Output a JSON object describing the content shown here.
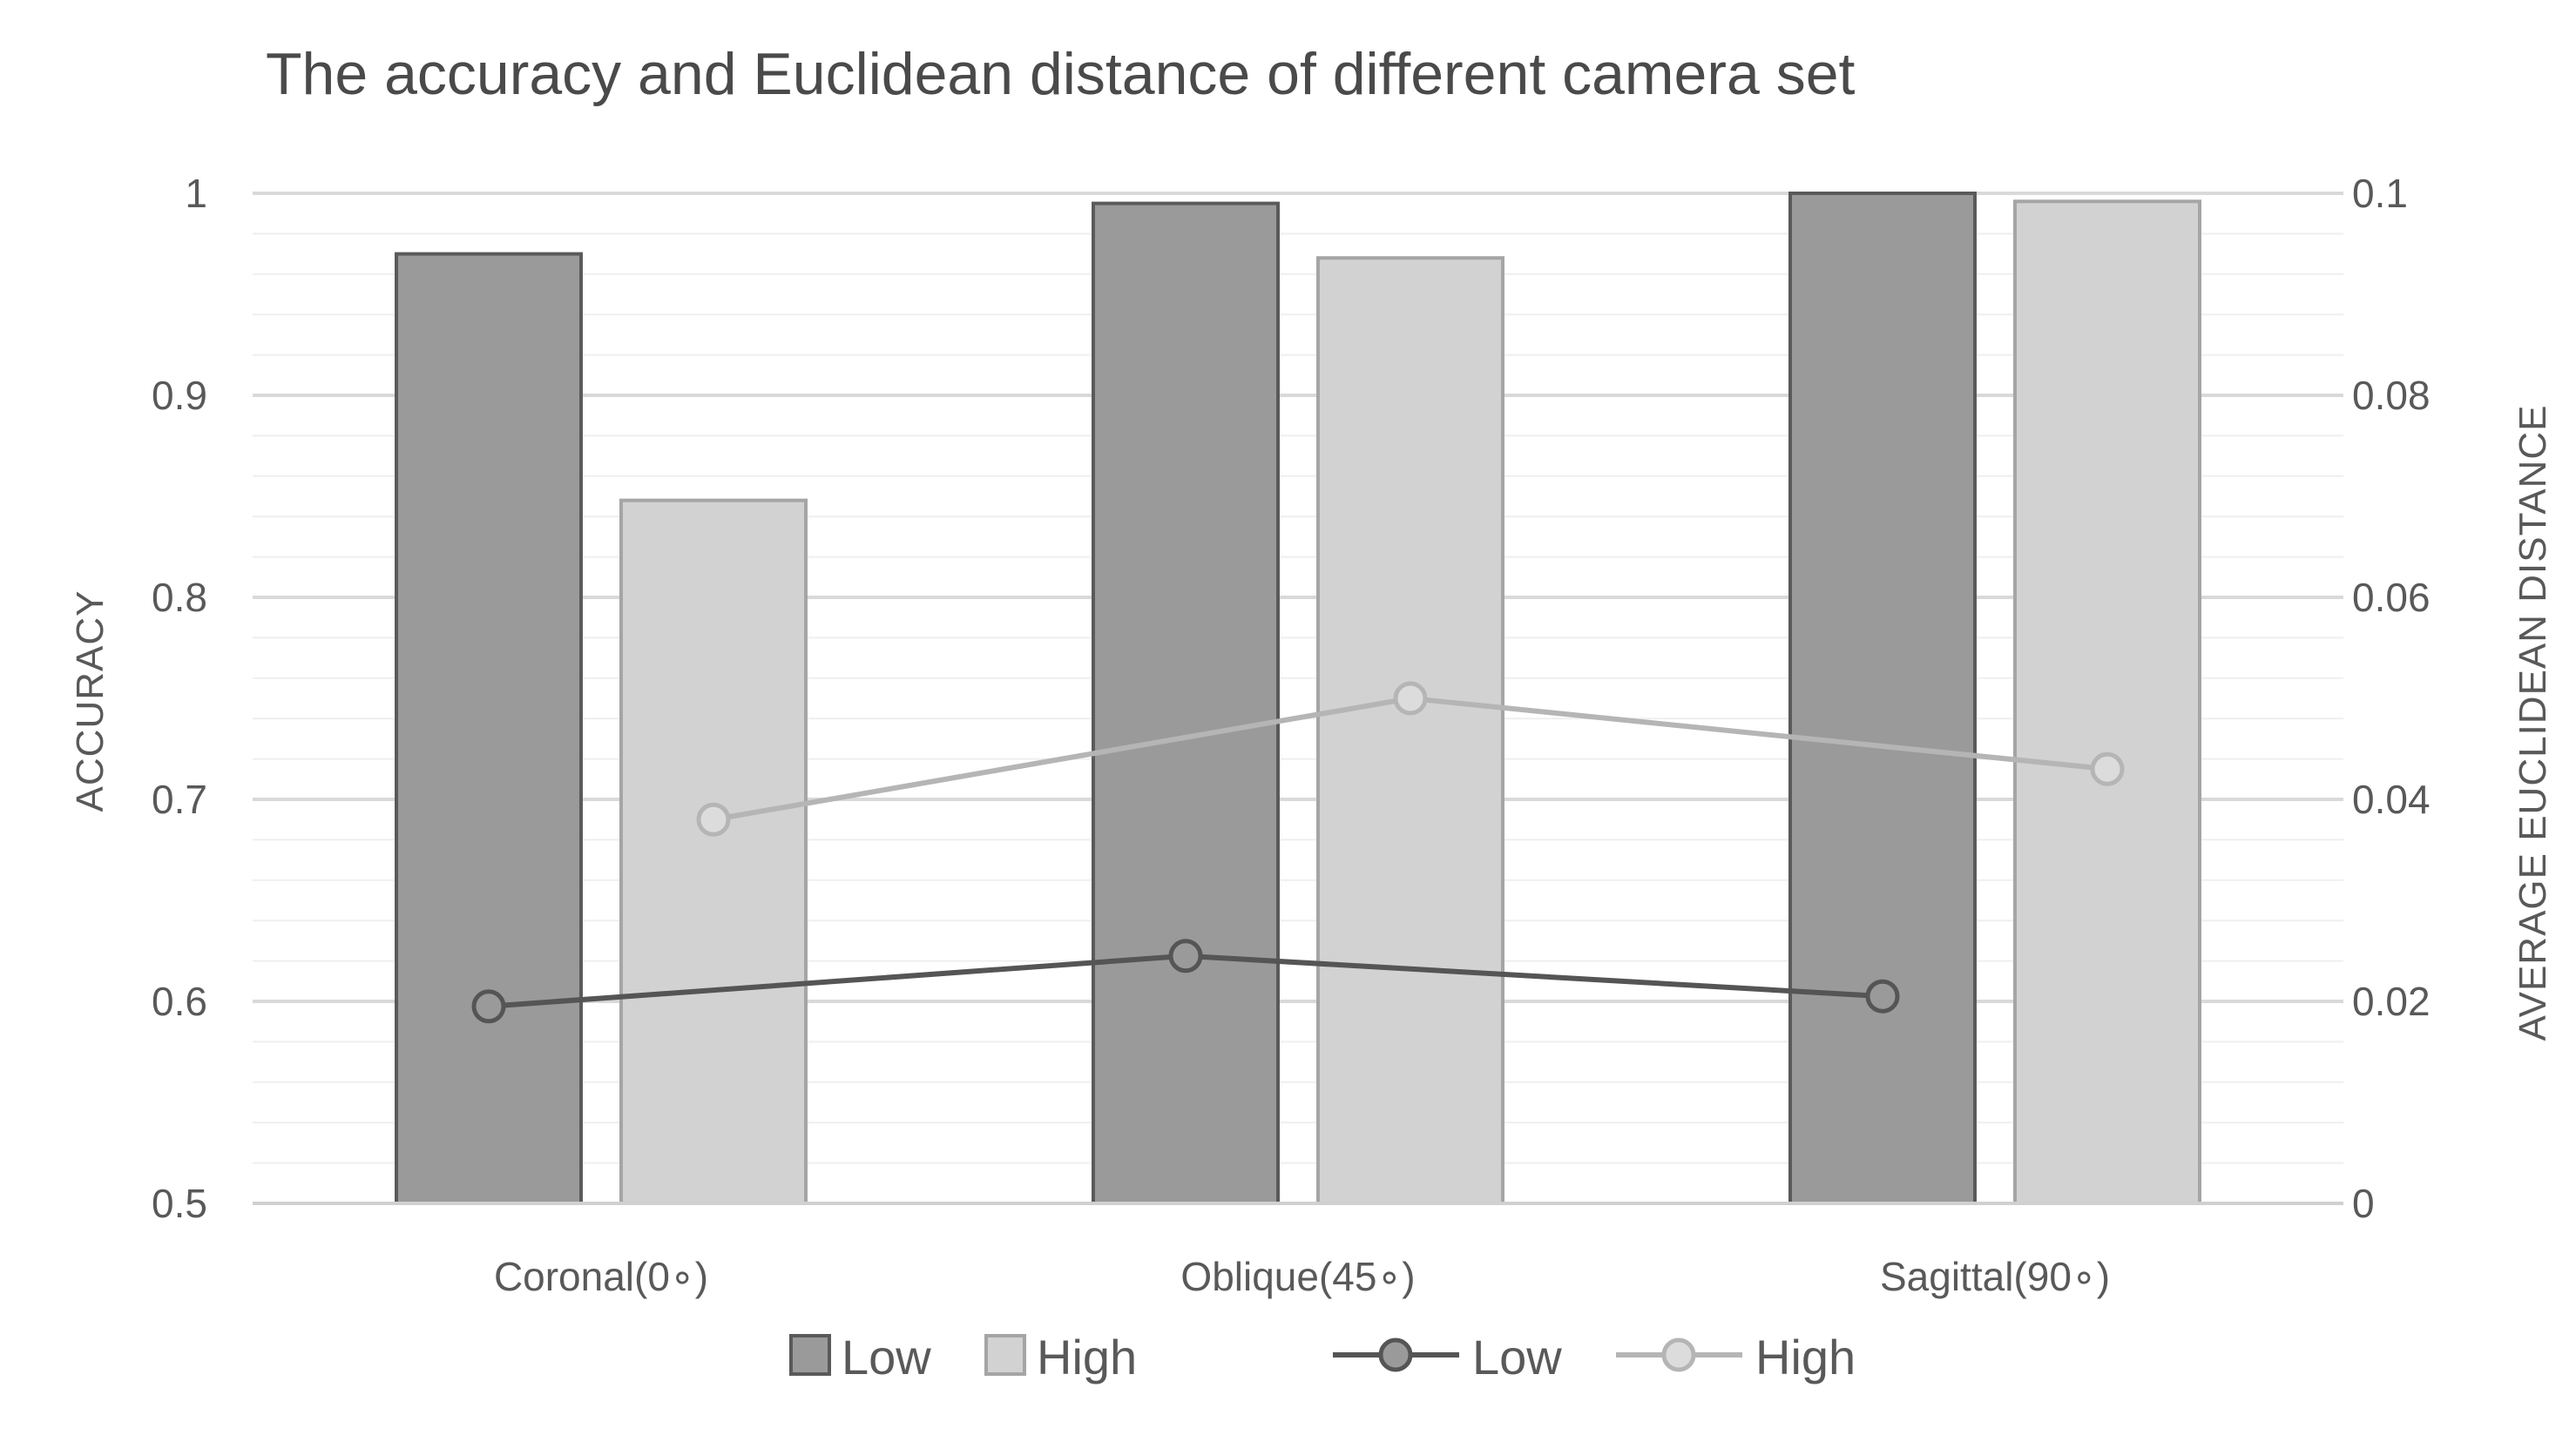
{
  "chart_data": {
    "type": "bar",
    "title": "The accuracy and Euclidean distance of different camera set",
    "categories": [
      "Coronal(0∘)",
      "Oblique(45∘)",
      "Sagittal(90∘)"
    ],
    "series": [
      {
        "name": "Low",
        "kind": "bar",
        "axis": "left",
        "color": "#9a9a9a",
        "values": [
          0.97,
          0.995,
          1.0
        ]
      },
      {
        "name": "High",
        "kind": "bar",
        "axis": "left",
        "color": "#d2d2d2",
        "values": [
          0.848,
          0.968,
          0.996
        ]
      },
      {
        "name": "Low",
        "kind": "line",
        "axis": "right",
        "color": "#555555",
        "values": [
          0.0195,
          0.0245,
          0.0205
        ]
      },
      {
        "name": "High",
        "kind": "line",
        "axis": "right",
        "color": "#b5b5b5",
        "values": [
          0.038,
          0.05,
          0.043
        ]
      }
    ],
    "ylabel": "ACCURACY",
    "ylim": [
      0.5,
      1.0
    ],
    "yticks": [
      "0.5",
      "0.6",
      "0.7",
      "0.8",
      "0.9",
      "1"
    ],
    "ylabel_right": "AVERAGE EUCLIDEAN DISTANCE",
    "ylim_right": [
      0,
      0.1
    ],
    "yticks_right": [
      "0",
      "0.02",
      "0.04",
      "0.06",
      "0.08",
      "0.1"
    ],
    "grid": true,
    "legend_position": "bottom"
  }
}
